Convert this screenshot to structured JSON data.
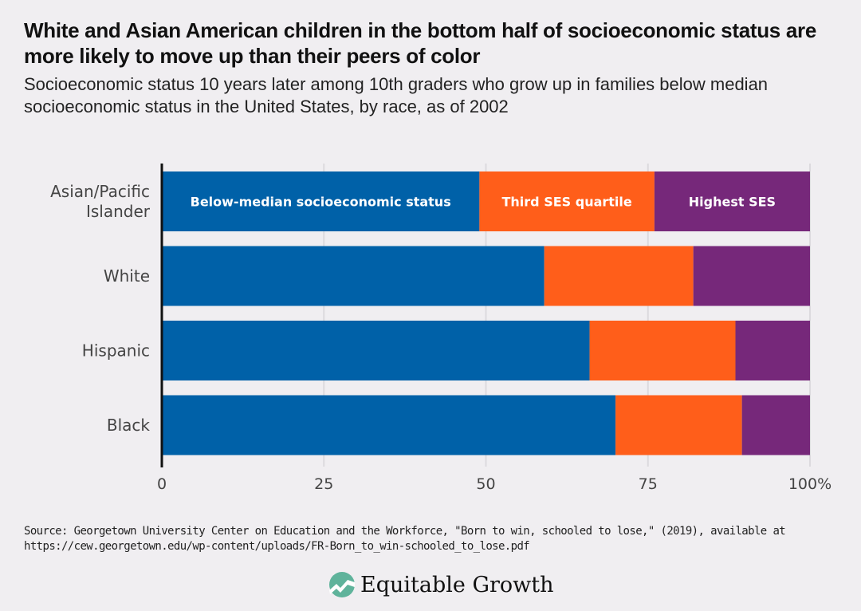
{
  "title": "White and Asian American children in the bottom half of socioeconomic status are more likely to move up than their peers of color",
  "subtitle": "Socioeconomic status 10 years later among 10th graders who grow up in families below median socioeconomic status in the United States, by race, as of 2002",
  "source_line1": "Source: Georgetown University Center on Education and the Workforce, \"Born to win, schooled to lose,\" (2019), available at",
  "source_line2": "https://cew.georgetown.edu/wp-content/uploads/FR-Born_to_win-schooled_to_lose.pdf",
  "logo_text": "Equitable Growth",
  "chart_data": {
    "type": "bar",
    "orientation": "horizontal",
    "stacked": true,
    "categories": [
      "Asian/Pacific Islander",
      "White",
      "Hispanic",
      "Black"
    ],
    "category_labels": [
      [
        "Asian/Pacific",
        "Islander"
      ],
      [
        "White"
      ],
      [
        "Hispanic"
      ],
      [
        "Black"
      ]
    ],
    "series": [
      {
        "name": "Below-median socioeconomic status",
        "color": "#0061a8",
        "values": [
          49,
          59,
          66,
          70
        ]
      },
      {
        "name": "Third SES quartile",
        "color": "#ff5e1a",
        "values": [
          27,
          23,
          22.5,
          19.5
        ]
      },
      {
        "name": "Highest SES",
        "color": "#76287a",
        "values": [
          24,
          18,
          11.5,
          10.5
        ]
      }
    ],
    "legend_placement": "inside first bar",
    "xlim": [
      0,
      100
    ],
    "xticks": [
      0,
      25,
      50,
      75,
      100
    ],
    "xtick_labels": [
      "0",
      "25",
      "50",
      "75",
      "100%"
    ],
    "grid": true,
    "xlabel": "",
    "ylabel": ""
  }
}
